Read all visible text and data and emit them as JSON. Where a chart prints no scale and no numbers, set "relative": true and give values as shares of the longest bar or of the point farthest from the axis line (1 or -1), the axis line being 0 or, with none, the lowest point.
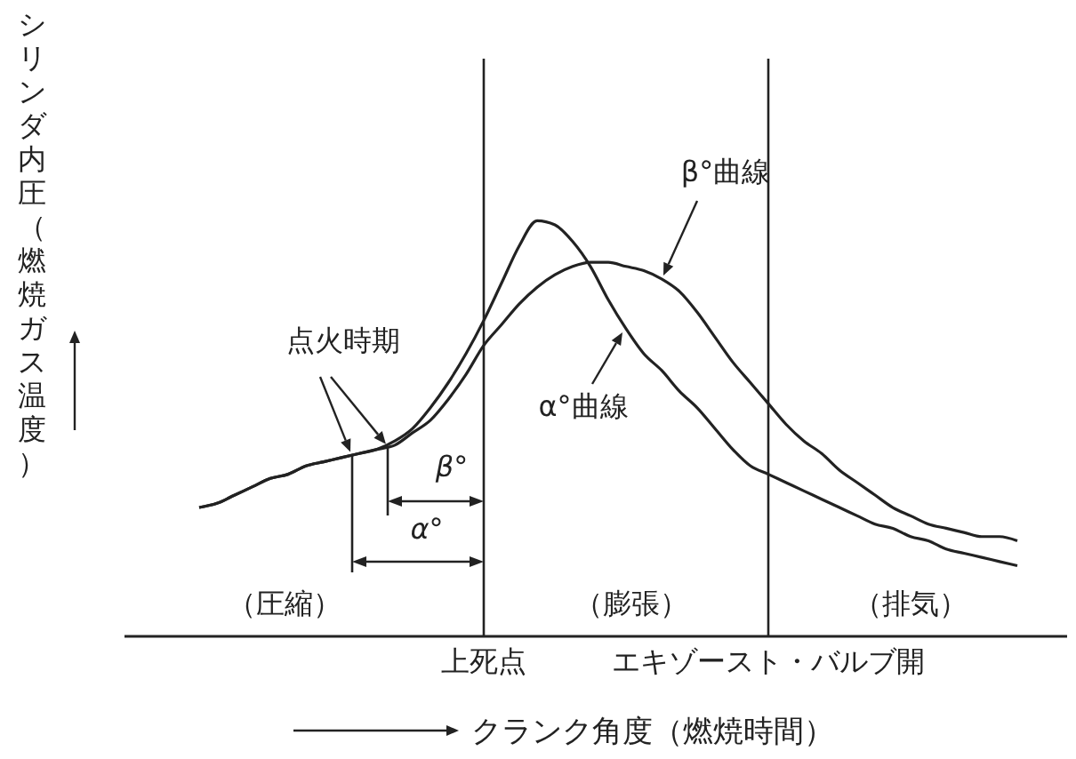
{
  "chart_data": {
    "type": "line",
    "relative": true,
    "xlabel": "クランク角度（燃焼時間）",
    "ylabel": "シリンダ内圧（燃焼ガス温度）",
    "categories": [
      null,
      null,
      null,
      null,
      null,
      null,
      null,
      null,
      null,
      null,
      null,
      null,
      null,
      null,
      null,
      null,
      "上死点",
      null,
      null,
      null,
      null,
      null,
      null,
      null,
      null,
      null,
      null,
      null,
      null,
      null,
      null,
      null,
      "エキゾースト・バルブ開",
      null,
      null,
      null,
      null,
      null,
      null,
      null,
      null,
      null,
      null,
      null,
      null,
      null,
      null
    ],
    "series": [
      {
        "name": "α°曲線",
        "color": "#222222",
        "values": [
          0.31,
          0.32,
          0.34,
          0.36,
          0.38,
          0.39,
          0.41,
          0.42,
          0.43,
          0.44,
          0.45,
          0.47,
          0.5,
          0.55,
          0.61,
          0.68,
          0.76,
          0.85,
          0.94,
          1.0,
          0.99,
          0.95,
          0.89,
          0.81,
          0.74,
          0.68,
          0.64,
          0.59,
          0.55,
          0.5,
          0.45,
          0.41,
          0.39,
          0.37,
          0.35,
          0.33,
          0.31,
          0.29,
          0.27,
          0.26,
          0.24,
          0.23,
          0.21,
          0.2,
          0.19,
          0.18,
          0.17
        ]
      },
      {
        "name": "β°曲線",
        "color": "#222222",
        "values": [
          0.31,
          0.32,
          0.34,
          0.36,
          0.38,
          0.39,
          0.41,
          0.42,
          0.43,
          0.44,
          0.45,
          0.46,
          0.49,
          0.52,
          0.57,
          0.63,
          0.7,
          0.75,
          0.8,
          0.84,
          0.87,
          0.89,
          0.9,
          0.9,
          0.89,
          0.88,
          0.86,
          0.83,
          0.78,
          0.72,
          0.66,
          0.61,
          0.56,
          0.51,
          0.47,
          0.44,
          0.4,
          0.37,
          0.34,
          0.31,
          0.29,
          0.27,
          0.26,
          0.25,
          0.24,
          0.24,
          0.23
        ]
      }
    ],
    "ref_lines": [
      {
        "axis": "x",
        "value": "上死点"
      },
      {
        "axis": "x",
        "value": "エキゾースト・バルブ開"
      }
    ],
    "annotations": [
      "点火時期",
      "β°",
      "α°",
      "（圧縮）",
      "（膨張）",
      "（排気）"
    ],
    "marker": "none",
    "line_style": "solid",
    "grid": false
  }
}
